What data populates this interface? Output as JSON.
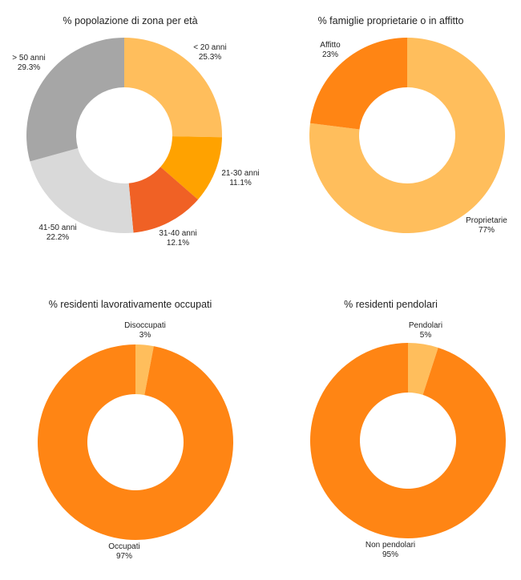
{
  "chart_data": [
    {
      "type": "pie",
      "title": "% popolazione di zona per età",
      "categories": [
        "< 20 anni",
        "21-30 anni",
        "31-40 anni",
        "41-50 anni",
        "> 50 anni"
      ],
      "values": [
        25.3,
        11.1,
        12.1,
        22.2,
        29.3
      ],
      "value_labels": [
        "25.3%",
        "11.1%",
        "12.1%",
        "22.2%",
        "29.3%"
      ],
      "colors": [
        "#FFBE5C",
        "#FFA200",
        "#F06125",
        "#D9D9D9",
        "#A6A6A6"
      ],
      "donut": true
    },
    {
      "type": "pie",
      "title": "% famiglie proprietarie o in affitto",
      "categories": [
        "Proprietarie",
        "Affitto"
      ],
      "values": [
        77,
        23
      ],
      "value_labels": [
        "77%",
        "23%"
      ],
      "colors": [
        "#FFBE5C",
        "#FF8514"
      ],
      "donut": true
    },
    {
      "type": "pie",
      "title": "% residenti lavorativamente occupati",
      "categories": [
        "Disoccupati",
        "Occupati"
      ],
      "values": [
        3,
        97
      ],
      "value_labels": [
        "3%",
        "97%"
      ],
      "colors": [
        "#FFBE5C",
        "#FF8514"
      ],
      "donut": true
    },
    {
      "type": "pie",
      "title": "% residenti pendolari",
      "categories": [
        "Pendolari",
        "Non pendolari"
      ],
      "values": [
        5,
        95
      ],
      "value_labels": [
        "5%",
        "95%"
      ],
      "colors": [
        "#FFBE5C",
        "#FF8514"
      ],
      "donut": true
    }
  ]
}
